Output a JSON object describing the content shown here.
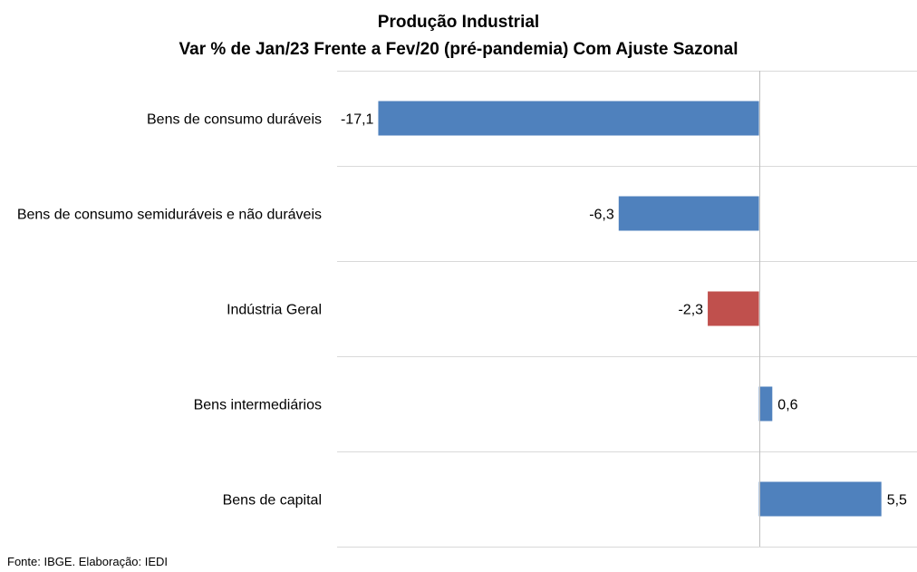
{
  "chart_data": {
    "type": "bar",
    "orientation": "horizontal",
    "title": "Produção Industrial",
    "subtitle": "Var % de Jan/23 Frente a Fev/20 (pré-pandemia) Com Ajuste Sazonal",
    "categories": [
      "Bens de consumo duráveis",
      "Bens de consumo semiduráveis e não duráveis",
      "Indústria Geral",
      "Bens intermediários",
      "Bens de capital"
    ],
    "values": [
      -17.1,
      -6.3,
      -2.3,
      0.6,
      5.5
    ],
    "value_labels": [
      "-17,1",
      "-6,3",
      "-2,3",
      "0,6",
      "5,5"
    ],
    "colors": [
      "#4F81BD",
      "#4F81BD",
      "#C0504D",
      "#4F81BD",
      "#4F81BD"
    ],
    "xlim": [
      -18.95,
      7.1
    ],
    "grid": true
  },
  "source": "Fonte: IBGE. Elaboração: IEDI"
}
